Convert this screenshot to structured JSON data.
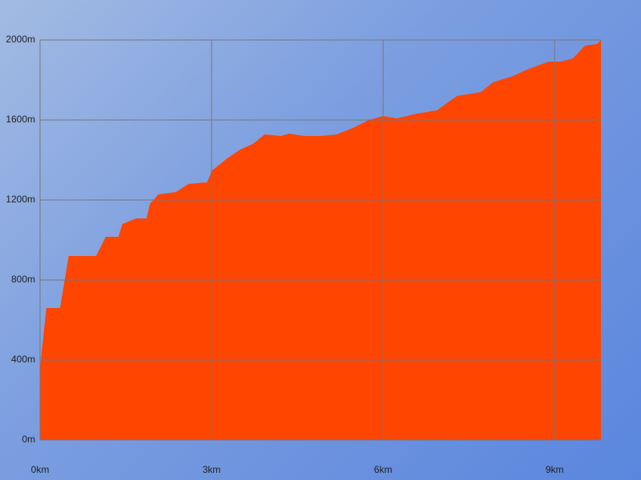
{
  "chart_data": {
    "type": "area",
    "color": "#ff4500",
    "grid": true,
    "x": [
      0,
      0.11,
      0.35,
      0.5,
      0.98,
      1.15,
      1.37,
      1.44,
      1.68,
      1.86,
      1.92,
      2.07,
      2.38,
      2.59,
      2.92,
      3.01,
      3.29,
      3.5,
      3.72,
      3.93,
      4.21,
      4.35,
      4.63,
      4.91,
      5.19,
      5.47,
      5.75,
      6.0,
      6.24,
      6.59,
      6.94,
      7.29,
      7.71,
      7.92,
      8.27,
      8.55,
      8.9,
      9.11,
      9.32,
      9.53,
      9.74,
      9.81
    ],
    "values": [
      360,
      660,
      660,
      920,
      920,
      1016,
      1016,
      1080,
      1108,
      1108,
      1180,
      1228,
      1240,
      1280,
      1288,
      1348,
      1412,
      1452,
      1480,
      1528,
      1520,
      1532,
      1520,
      1520,
      1528,
      1560,
      1600,
      1620,
      1608,
      1632,
      1648,
      1720,
      1740,
      1788,
      1820,
      1856,
      1892,
      1892,
      1908,
      1972,
      1980,
      2000
    ],
    "xlim": [
      0,
      9.81
    ],
    "xticks": [
      {
        "value": 0,
        "label": "0km"
      },
      {
        "value": 3,
        "label": "3km"
      },
      {
        "value": 6,
        "label": "6km"
      },
      {
        "value": 9,
        "label": "9km"
      }
    ],
    "ylim": [
      0,
      2000
    ],
    "yticks": [
      {
        "value": 0,
        "label": "0m"
      },
      {
        "value": 400,
        "label": "400m"
      },
      {
        "value": 800,
        "label": "800m"
      },
      {
        "value": 1200,
        "label": "1200m"
      },
      {
        "value": 1600,
        "label": "1600m"
      },
      {
        "value": 2000,
        "label": "2000m"
      }
    ]
  }
}
